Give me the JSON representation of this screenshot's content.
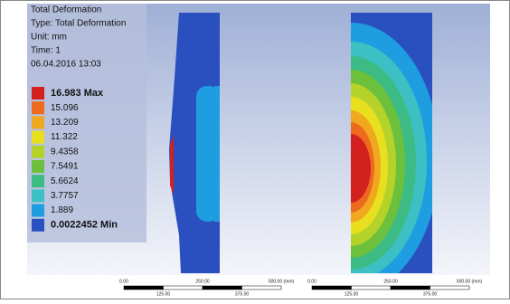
{
  "header": {
    "lines": [
      "Total Deformation",
      "Type: Total Deformation",
      "Unit: mm",
      "Time: 1",
      "06.04.2016 13:03"
    ]
  },
  "legend": {
    "items": [
      {
        "label": "16.983 Max",
        "color": "#d2211e"
      },
      {
        "label": "15.096",
        "color": "#ee6a1e"
      },
      {
        "label": "13.209",
        "color": "#f0a81e"
      },
      {
        "label": "11.322",
        "color": "#e8e01e"
      },
      {
        "label": "9.4358",
        "color": "#b4d22a"
      },
      {
        "label": "7.5491",
        "color": "#6cc03c"
      },
      {
        "label": "5.6624",
        "color": "#3cbc84"
      },
      {
        "label": "3.7757",
        "color": "#3cc0c4"
      },
      {
        "label": "1.889",
        "color": "#1e9ee0"
      },
      {
        "label": "0.0022452 Min",
        "color": "#2a4fbf"
      }
    ]
  },
  "scale_bars": [
    {
      "top": [
        "0.00",
        "250.00",
        "500.00 (mm)"
      ],
      "bottom": [
        "125.00",
        "375.00"
      ]
    },
    {
      "top": [
        "0.00",
        "250.00",
        "500.00 (mm)"
      ],
      "bottom": [
        "125.00",
        "375.00"
      ]
    }
  ]
}
